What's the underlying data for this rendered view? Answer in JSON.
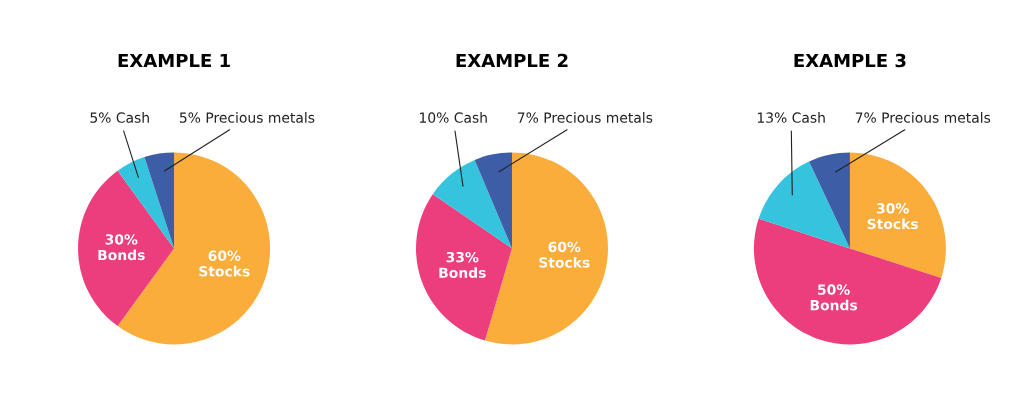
{
  "chart_data": [
    {
      "type": "pie",
      "title": "EXAMPLE 1",
      "categories": [
        "Stocks",
        "Bonds",
        "Cash",
        "Precious metals"
      ],
      "values": [
        60,
        30,
        5,
        5
      ],
      "value_labels": [
        "60%",
        "30%",
        "5%",
        "5%"
      ],
      "colors": [
        "#fbad3c",
        "#ec3d7c",
        "#35c3dd",
        "#3d5ea6"
      ]
    },
    {
      "type": "pie",
      "title": "EXAMPLE 2",
      "categories": [
        "Stocks",
        "Bonds",
        "Cash",
        "Precious metals"
      ],
      "values": [
        60,
        33,
        10,
        7
      ],
      "value_labels": [
        "60%",
        "33%",
        "10%",
        "7%"
      ],
      "colors": [
        "#fbad3c",
        "#ec3d7c",
        "#35c3dd",
        "#3d5ea6"
      ]
    },
    {
      "type": "pie",
      "title": "EXAMPLE 3",
      "categories": [
        "Stocks",
        "Bonds",
        "Cash",
        "Precious metals"
      ],
      "values": [
        30,
        50,
        13,
        7
      ],
      "value_labels": [
        "30%",
        "50%",
        "13%",
        "7%"
      ],
      "colors": [
        "#fbad3c",
        "#ec3d7c",
        "#35c3dd",
        "#3d5ea6"
      ]
    }
  ]
}
